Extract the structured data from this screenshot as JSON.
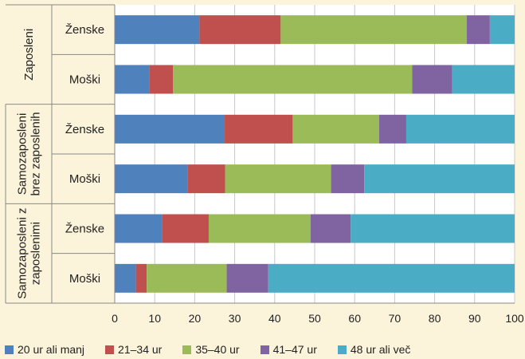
{
  "chart_data": {
    "type": "bar",
    "orientation": "horizontal",
    "stacked": true,
    "title": "",
    "xlabel": "",
    "ylabel": "",
    "xlim": [
      0,
      100
    ],
    "xticks": [
      0,
      10,
      20,
      30,
      40,
      50,
      60,
      70,
      80,
      90,
      100
    ],
    "grid": "vertical",
    "legend": "bottom",
    "groups": [
      {
        "label": "Zaposleni",
        "categories": [
          "Ženske",
          "Moški"
        ]
      },
      {
        "label": "Samozaposleni brez zaposlenih",
        "label_lines": [
          "Samozaposleni",
          "brez zaposlenih"
        ],
        "categories": [
          "Ženske",
          "Moški"
        ]
      },
      {
        "label": "Samozaposleni z zaposlenimi",
        "label_lines": [
          "Samozaposleni z",
          "zaposlenimi"
        ],
        "categories": [
          "Ženske",
          "Moški"
        ]
      }
    ],
    "series": [
      {
        "name": "20 ur ali manj",
        "color": "#4f81bd",
        "values": [
          21.2,
          8.6,
          27.5,
          18.2,
          11.8,
          5.3
        ]
      },
      {
        "name": "21–34 ur",
        "color": "#c0504d",
        "values": [
          20.3,
          6.0,
          17.0,
          9.4,
          11.7,
          2.7
        ]
      },
      {
        "name": "35–40 ur",
        "color": "#9bbb59",
        "values": [
          46.5,
          59.8,
          21.6,
          26.5,
          25.5,
          20.0
        ]
      },
      {
        "name": "41–47 ur",
        "color": "#8064a2",
        "values": [
          5.8,
          10.0,
          6.8,
          8.3,
          10.0,
          10.4
        ]
      },
      {
        "name": "48 ur ali več",
        "color": "#4bacc6",
        "values": [
          6.2,
          15.6,
          27.1,
          37.6,
          41.0,
          61.6
        ]
      }
    ]
  }
}
